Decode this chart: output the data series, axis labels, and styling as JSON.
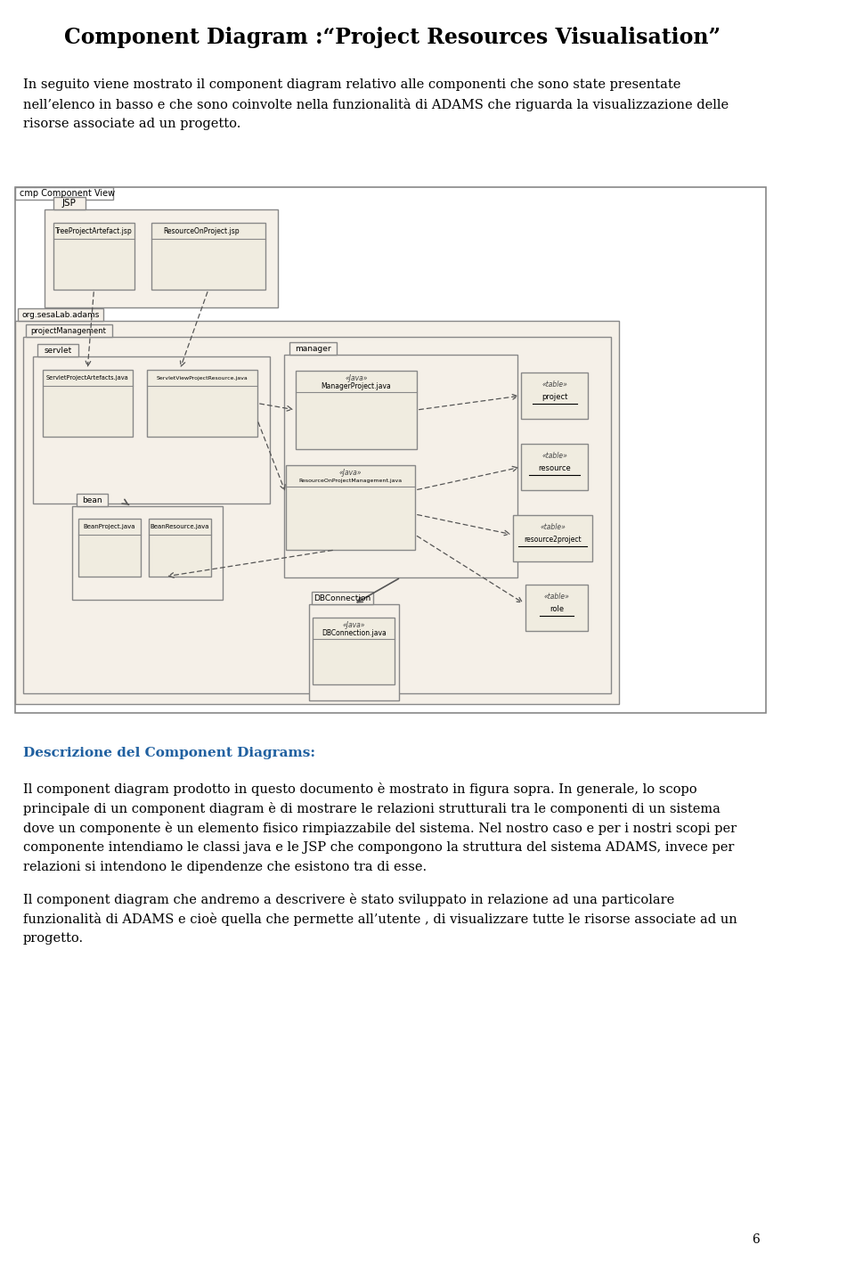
{
  "title": "Component Diagram :“Project Resources Visualisation”",
  "intro_lines": [
    "In seguito viene mostrato il component diagram relativo alle componenti che sono state presentate",
    "nell’elenco in basso e che sono coinvolte nella funzionalità di ADAMS che riguarda la visualizzazione delle",
    "risorse associate ad un progetto."
  ],
  "section_title": "Descrizione del Component Diagrams:",
  "para1_lines": [
    "Il component diagram prodotto in questo documento è mostrato in figura sopra. In generale, lo scopo",
    "principale di un component diagram è di mostrare le relazioni strutturali tra le componenti di un sistema",
    "dove un componente è un elemento fisico rimpiazzabile del sistema. Nel nostro caso e per i nostri scopi per",
    "componente intendiamo le classi java e le JSP che compongono la struttura del sistema ADAMS, invece per",
    "relazioni si intendono le dipendenze che esistono tra di esse."
  ],
  "para2_lines": [
    "Il component diagram che andremo a descrivere è stato sviluppato in relazione ad una particolare",
    "funzionalità di ADAMS e cioè quella che permette all’utente , di visualizzare tutte le risorse associate ad un",
    "progetto."
  ],
  "page_num": "6",
  "bg_color": "#ffffff",
  "diagram_bg": "#f5f0e8",
  "box_fill": "#f0ece0",
  "box_stroke": "#888888",
  "title_color": "#000000",
  "section_color": "#2060a0",
  "text_color": "#000000"
}
